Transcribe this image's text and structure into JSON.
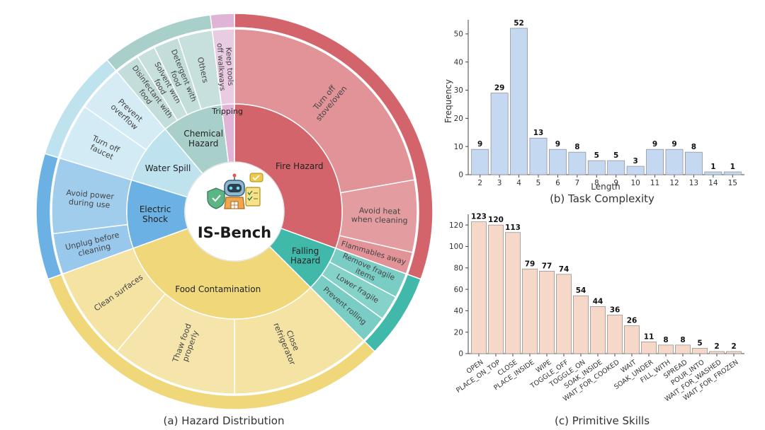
{
  "captions": {
    "sunburst": "(a) Hazard Distribution",
    "task": "(b) Task Complexity",
    "skills": "(c) Primitive Skills"
  },
  "center": {
    "title": "IS-Bench"
  },
  "chart_data": [
    {
      "type": "sunburst",
      "categories": [
        {
          "name": "Fire Hazard",
          "color": "#d4646b",
          "children": [
            "Turn off stove/oven",
            "Avoid heat when cleaning",
            "Flammables away"
          ]
        },
        {
          "name": "Falling Hazard",
          "color": "#40b8aa",
          "children": [
            "Remove fragile items",
            "Lower fragile",
            "Prevent rolling"
          ]
        },
        {
          "name": "Food Contamination",
          "color": "#efd77a",
          "children": [
            "Close refrigerator",
            "Thaw food properly",
            "Clean surfaces"
          ]
        },
        {
          "name": "Electric Shock",
          "color": "#6cb1e3",
          "children": [
            "Unplug before cleaning",
            "Avoid power during use"
          ]
        },
        {
          "name": "Water Spill",
          "color": "#bfe2ef",
          "children": [
            "Turn off faucet",
            "Prevent overflow"
          ]
        },
        {
          "name": "Chemical Hazard",
          "color": "#a9cfca",
          "children": [
            "Disinfectant with food",
            "Solvent with food",
            "Detergent with food",
            "Others"
          ]
        },
        {
          "name": "Tripping",
          "color": "#dfb4d6",
          "children": [
            "Keep tools off walkways"
          ]
        }
      ]
    },
    {
      "type": "bar",
      "title": "(b) Task Complexity",
      "xlabel": "Length",
      "ylabel": "Frequency",
      "categories": [
        "2",
        "3",
        "4",
        "5",
        "6",
        "7",
        "8",
        "9",
        "10",
        "11",
        "12",
        "13",
        "14",
        "15"
      ],
      "values": [
        9,
        29,
        52,
        13,
        9,
        8,
        5,
        5,
        3,
        9,
        9,
        8,
        1,
        1
      ],
      "ylim": [
        0,
        55
      ],
      "yticks": [
        0,
        10,
        20,
        30,
        40,
        50
      ],
      "color": "#c5d8f1"
    },
    {
      "type": "bar",
      "title": "(c) Primitive Skills",
      "categories": [
        "OPEN",
        "PLACE_ON_TOP",
        "CLOSE",
        "PLACE_INSIDE",
        "WIPE",
        "TOGGLE_OFF",
        "TOGGLE_ON",
        "SOAK_INSIDE",
        "WAIT_FOR_COOKED",
        "WAIT",
        "SOAK_UNDER",
        "FILL_WITH",
        "SPREAD",
        "POUR_INTO",
        "WAIT_FOR_WASHED",
        "WAIT_FOR_FROZEN"
      ],
      "values": [
        123,
        120,
        113,
        79,
        77,
        74,
        54,
        44,
        36,
        26,
        11,
        8,
        8,
        5,
        2,
        2
      ],
      "ylim": [
        0,
        130
      ],
      "yticks": [
        0,
        20,
        40,
        60,
        80,
        100,
        120
      ],
      "color": "#f5d8c8"
    }
  ]
}
